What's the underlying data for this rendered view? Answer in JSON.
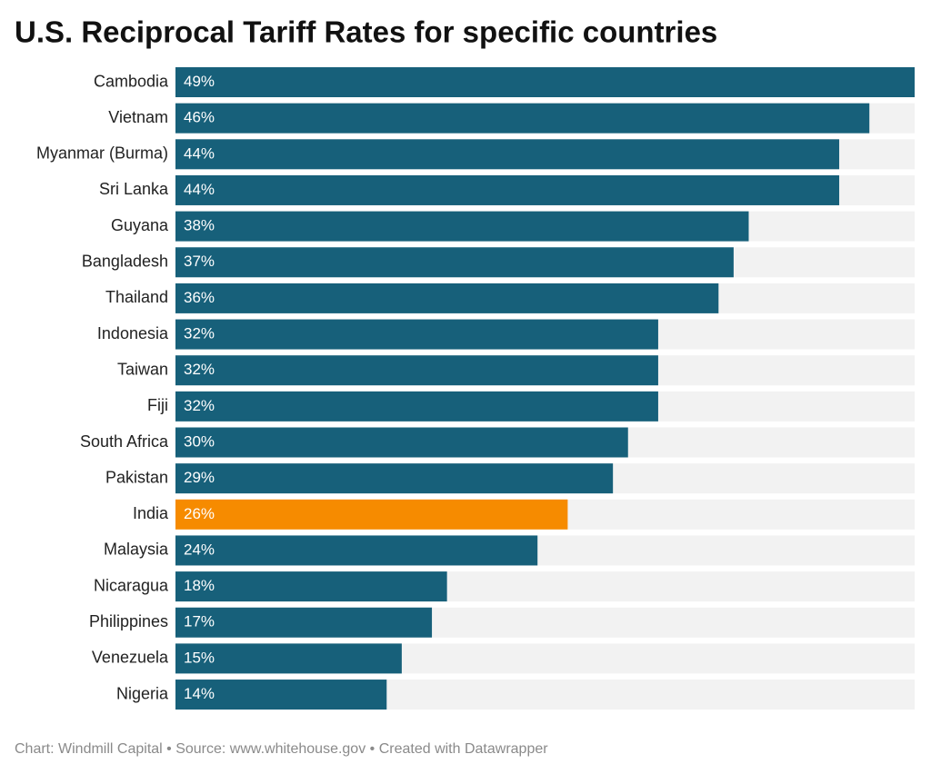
{
  "chart_data": {
    "type": "bar",
    "orientation": "horizontal",
    "title": "U.S. Reciprocal Tariff Rates for specific countries",
    "footer": "Chart: Windmill Capital • Source: www.whitehouse.gov • Created with Datawrapper",
    "categories": [
      "Cambodia",
      "Vietnam",
      "Myanmar (Burma)",
      "Sri Lanka",
      "Guyana",
      "Bangladesh",
      "Thailand",
      "Indonesia",
      "Taiwan",
      "Fiji",
      "South Africa",
      "Pakistan",
      "India",
      "Malaysia",
      "Nicaragua",
      "Philippines",
      "Venezuela",
      "Nigeria"
    ],
    "values": [
      49,
      46,
      44,
      44,
      38,
      37,
      36,
      32,
      32,
      32,
      30,
      29,
      26,
      24,
      18,
      17,
      15,
      14
    ],
    "value_labels": [
      "49%",
      "46%",
      "44%",
      "44%",
      "38%",
      "37%",
      "36%",
      "32%",
      "32%",
      "32%",
      "30%",
      "29%",
      "26%",
      "24%",
      "18%",
      "17%",
      "15%",
      "14%"
    ],
    "colors": [
      "#17607a",
      "#17607a",
      "#17607a",
      "#17607a",
      "#17607a",
      "#17607a",
      "#17607a",
      "#17607a",
      "#17607a",
      "#17607a",
      "#17607a",
      "#17607a",
      "#f68b00",
      "#17607a",
      "#17607a",
      "#17607a",
      "#17607a",
      "#17607a"
    ]
  }
}
